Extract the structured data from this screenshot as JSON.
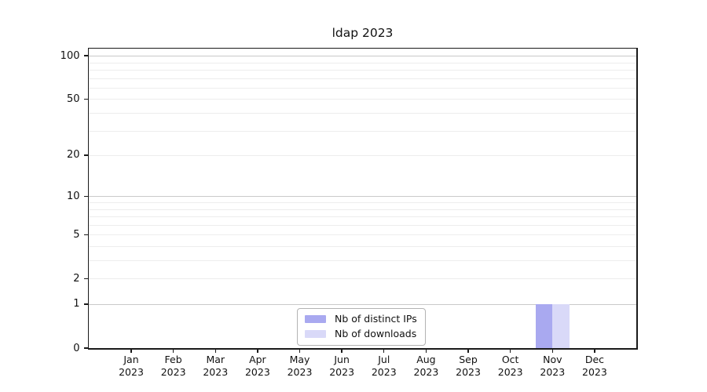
{
  "title": "ldap 2023",
  "chart_data": {
    "type": "bar",
    "title": "ldap 2023",
    "categories": [
      "Jan",
      "Feb",
      "Mar",
      "Apr",
      "May",
      "Jun",
      "Jul",
      "Aug",
      "Sep",
      "Oct",
      "Nov",
      "Dec"
    ],
    "category_year": "2023",
    "series": [
      {
        "name": "Nb of distinct IPs",
        "color": "#a9a9f0",
        "values": [
          0,
          0,
          0,
          0,
          0,
          0,
          0,
          0,
          0,
          0,
          1,
          0
        ]
      },
      {
        "name": "Nb of downloads",
        "color": "#d9d9f8",
        "values": [
          0,
          0,
          0,
          0,
          0,
          0,
          0,
          0,
          0,
          0,
          1,
          0
        ]
      }
    ],
    "xlabel": "",
    "ylabel": "",
    "yaxis": {
      "scale": "log1p",
      "min": 0,
      "max": 112,
      "labeled_ticks": [
        0,
        1,
        2,
        5,
        10,
        20,
        50,
        100
      ],
      "decade_gridlines": [
        1,
        10,
        100
      ],
      "minor_gridlines": [
        2,
        3,
        4,
        5,
        6,
        7,
        8,
        9,
        20,
        30,
        40,
        50,
        60,
        70,
        80,
        90
      ]
    },
    "grid": true,
    "legend_position": "inside-bottom-center",
    "colors": {
      "spine": "#1a1a1a",
      "major_grid": "#c9c9c9",
      "minor_grid": "#ededed",
      "text": "#111111"
    }
  }
}
